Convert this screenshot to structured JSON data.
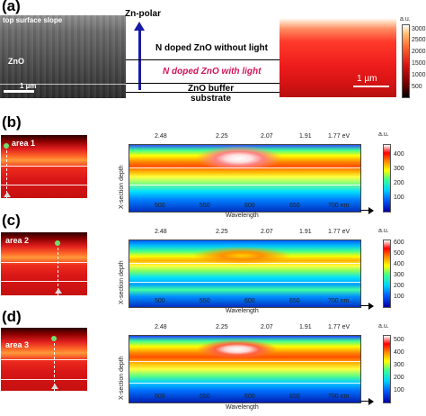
{
  "panel_a": {
    "letter": "(a)",
    "sem_title": "top surface slope",
    "sem_zno": "ZnO",
    "sem_scale": "1 µm",
    "arrow_label": "Zn-polar",
    "layer_1": "N doped ZnO without light",
    "layer_2": "N doped ZnO with light",
    "layer_3": "ZnO buffer",
    "layer_4": "substrate",
    "map_scale": "1 µm",
    "colorbar_unit": "a.u.",
    "colorbar_ticks": [
      "3000",
      "2500",
      "2000",
      "1500",
      "1000",
      "500"
    ]
  },
  "shared": {
    "top_ticks": [
      "2.48",
      "2.25",
      "2.07",
      "1.91",
      "1.77 eV"
    ],
    "bottom_ticks": [
      "500",
      "550",
      "600",
      "650",
      "700 nm"
    ],
    "xlabel": "Wavelength",
    "ylabel": "X-section depth",
    "colorbar_unit": "a.u."
  },
  "panel_b": {
    "letter": "(b)",
    "area": "area 1",
    "colorbar_ticks": [
      "400",
      "300",
      "200",
      "100"
    ]
  },
  "panel_c": {
    "letter": "(c)",
    "area": "area 2",
    "colorbar_ticks": [
      "600",
      "500",
      "400",
      "300",
      "200",
      "100"
    ]
  },
  "panel_d": {
    "letter": "(d)",
    "area": "area 3",
    "colorbar_ticks": [
      "500",
      "400",
      "300",
      "200",
      "100"
    ]
  },
  "colors": {
    "accent_red": "#d4145a",
    "arrow_blue": "#1a1aa8"
  }
}
